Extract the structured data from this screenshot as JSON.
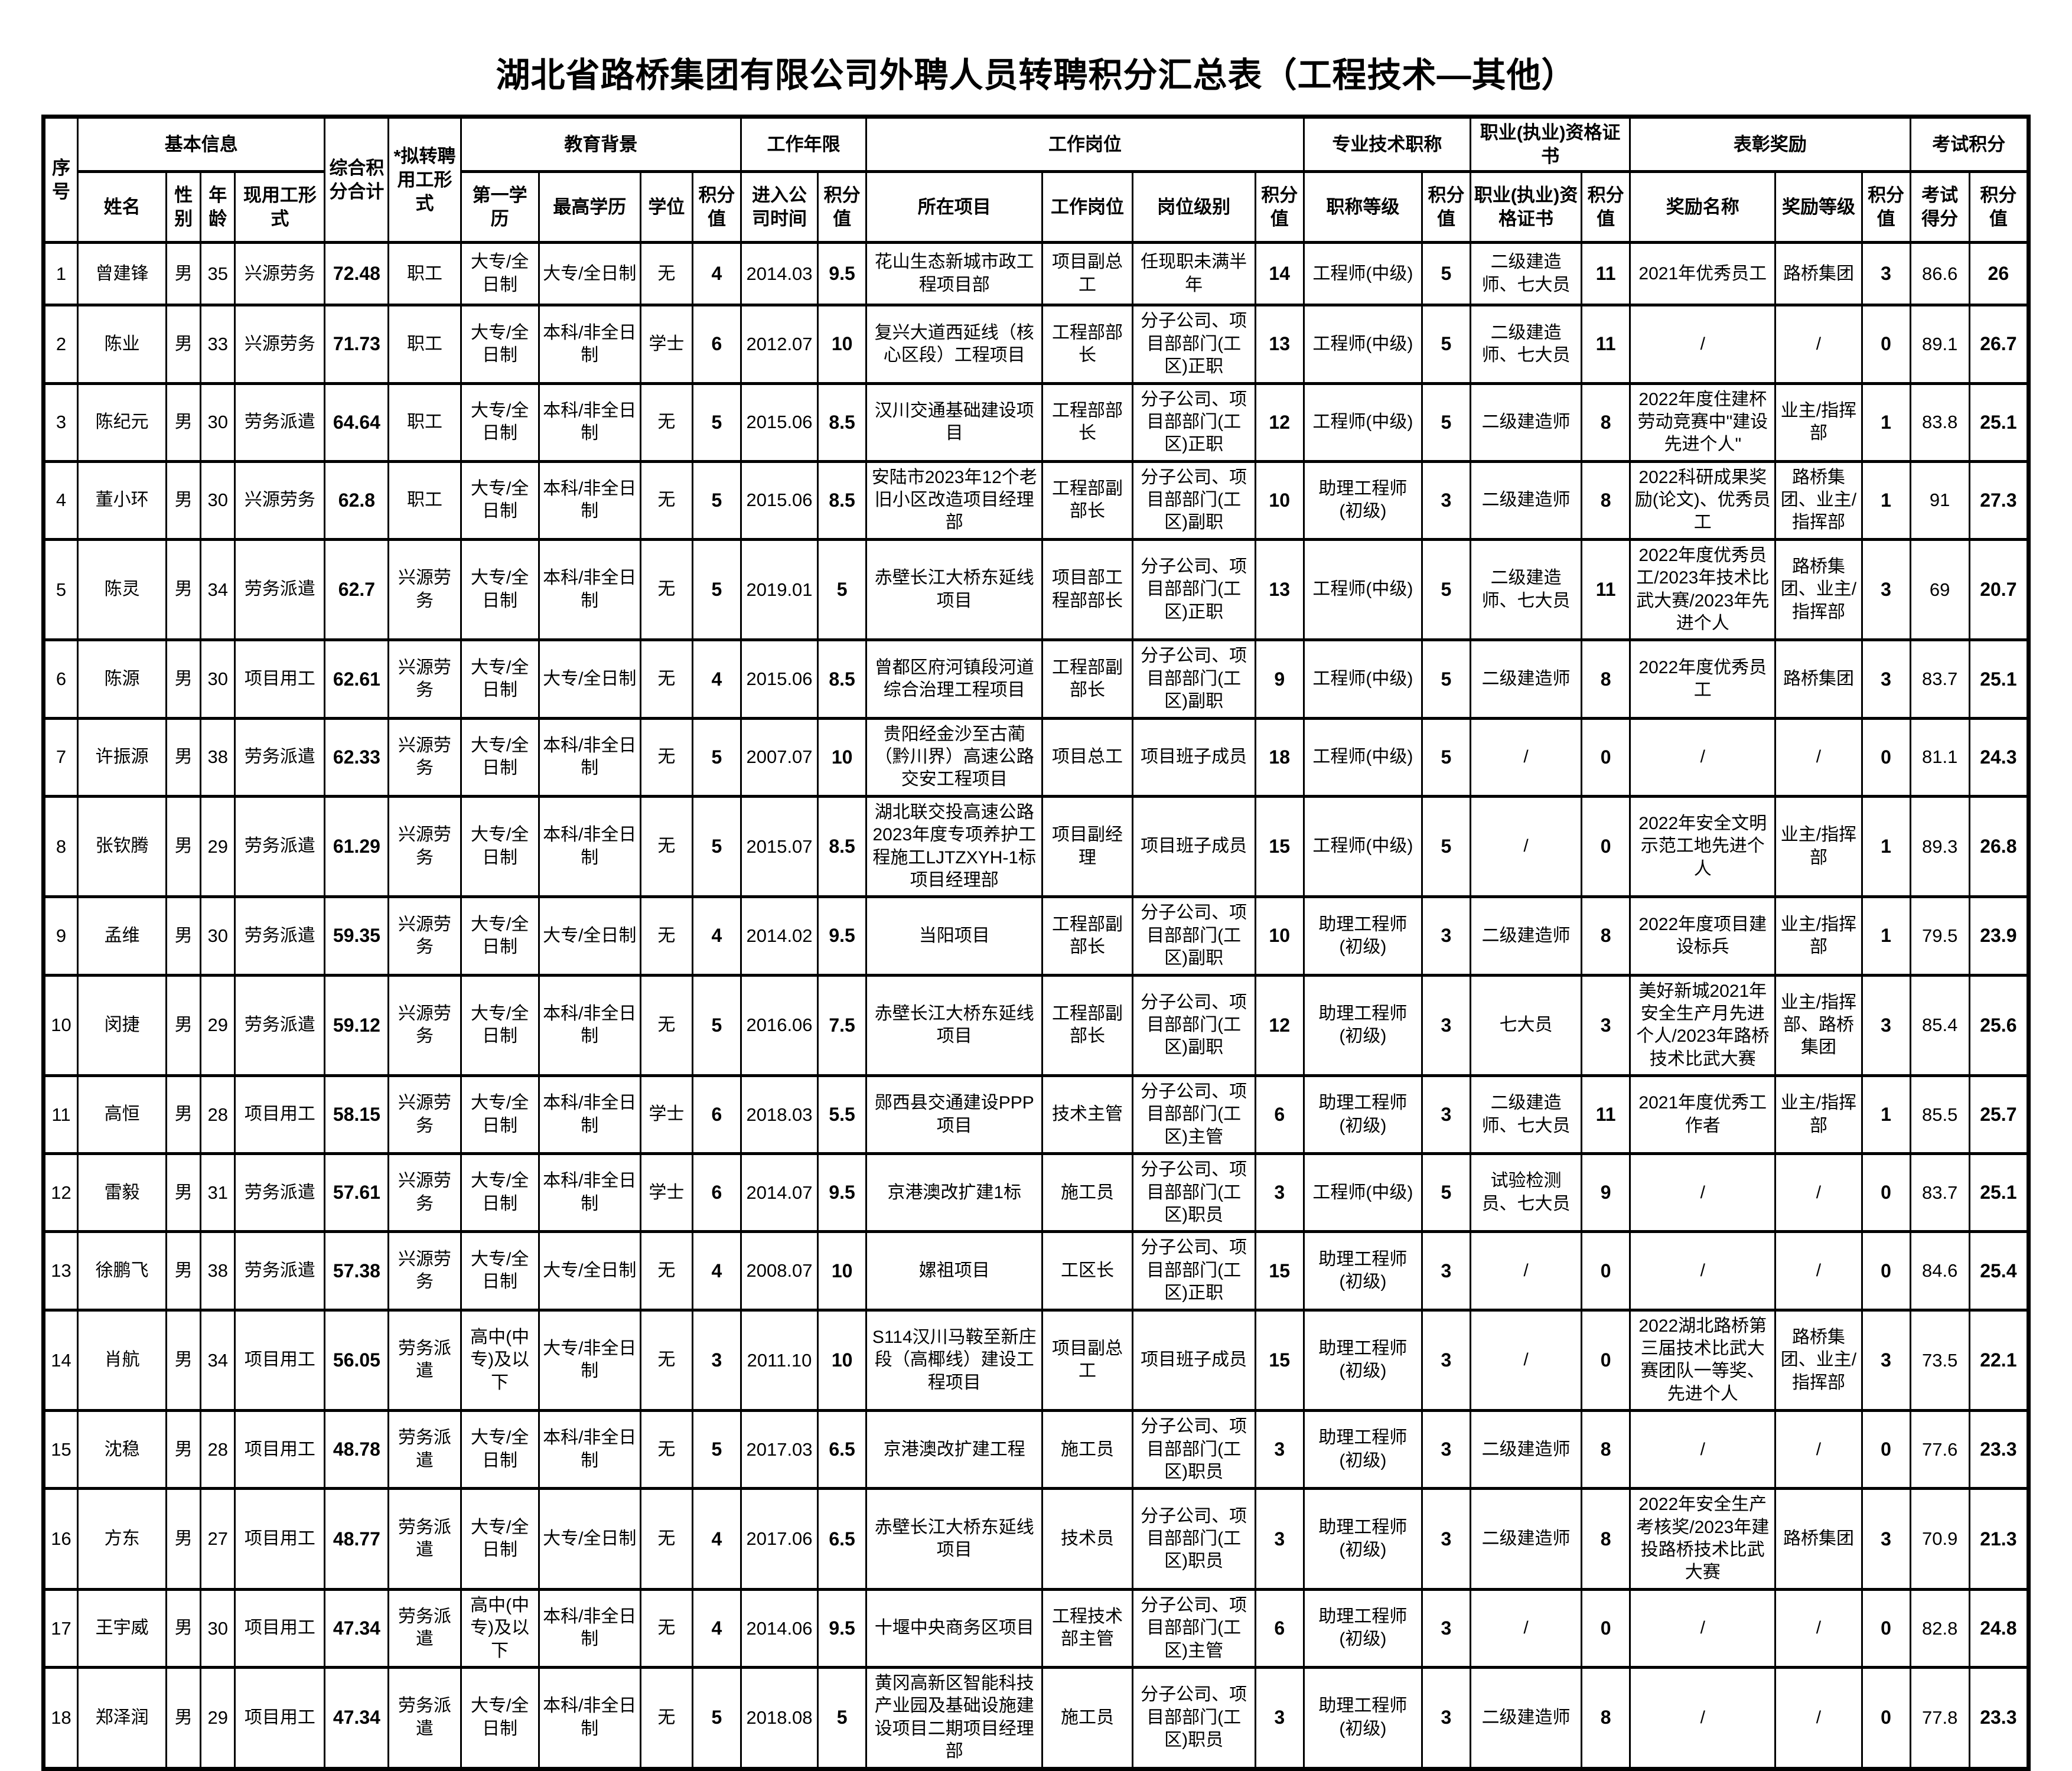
{
  "title": "湖北省路桥集团有限公司外聘人员转聘积分汇总表（工程技术—其他）",
  "table": {
    "header": {
      "row1": [
        {
          "label": "序号",
          "rowspan": 2
        },
        {
          "label": "基本信息",
          "colspan": 4
        },
        {
          "label": "综合积分合计",
          "rowspan": 2
        },
        {
          "label": "*拟转聘用工形式",
          "rowspan": 2
        },
        {
          "label": "教育背景",
          "colspan": 4
        },
        {
          "label": "工作年限",
          "colspan": 2
        },
        {
          "label": "工作岗位",
          "colspan": 4
        },
        {
          "label": "专业技术职称",
          "colspan": 2
        },
        {
          "label": "职业(执业)资格证书",
          "colspan": 2
        },
        {
          "label": "表彰奖励",
          "colspan": 3
        },
        {
          "label": "考试积分",
          "colspan": 2
        }
      ],
      "row2": [
        "姓名",
        "性别",
        "年龄",
        "现用工形式",
        "第一学历",
        "最高学历",
        "学位",
        "积分值",
        "进入公司时间",
        "积分值",
        "所在项目",
        "工作岗位",
        "岗位级别",
        "积分值",
        "职称等级",
        "积分值",
        "职业(执业)资格证书",
        "积分值",
        "奖励名称",
        "奖励等级",
        "积分值",
        "考试得分",
        "积分值"
      ]
    },
    "rows": [
      [
        "1",
        "曾建锋",
        "男",
        "35",
        "兴源劳务",
        "72.48",
        "职工",
        "大专/全日制",
        "大专/全日制",
        "无",
        "4",
        "2014.03",
        "9.5",
        "花山生态新城市政工程项目部",
        "项目副总工",
        "任现职未满半年",
        "14",
        "工程师(中级)",
        "5",
        "二级建造师、七大员",
        "11",
        "2021年优秀员工",
        "路桥集团",
        "3",
        "86.6",
        "26"
      ],
      [
        "2",
        "陈业",
        "男",
        "33",
        "兴源劳务",
        "71.73",
        "职工",
        "大专/全日制",
        "本科/非全日制",
        "学士",
        "6",
        "2012.07",
        "10",
        "复兴大道西延线（核心区段）工程项目",
        "工程部部长",
        "分子公司、项目部部门(工区)正职",
        "13",
        "工程师(中级)",
        "5",
        "二级建造师、七大员",
        "11",
        "/",
        "/",
        "0",
        "89.1",
        "26.7"
      ],
      [
        "3",
        "陈纪元",
        "男",
        "30",
        "劳务派遣",
        "64.64",
        "职工",
        "大专/全日制",
        "本科/非全日制",
        "无",
        "5",
        "2015.06",
        "8.5",
        "汉川交通基础建设项目",
        "工程部部长",
        "分子公司、项目部部门(工区)正职",
        "12",
        "工程师(中级)",
        "5",
        "二级建造师",
        "8",
        "2022年度住建杯劳动竞赛中\"建设先进个人\"",
        "业主/指挥部",
        "1",
        "83.8",
        "25.1"
      ],
      [
        "4",
        "董小环",
        "男",
        "30",
        "兴源劳务",
        "62.8",
        "职工",
        "大专/全日制",
        "本科/非全日制",
        "无",
        "5",
        "2015.06",
        "8.5",
        "安陆市2023年12个老旧小区改造项目经理部",
        "工程部副部长",
        "分子公司、项目部部门(工区)副职",
        "10",
        "助理工程师(初级)",
        "3",
        "二级建造师",
        "8",
        "2022科研成果奖励(论文)、优秀员工",
        "路桥集团、业主/指挥部",
        "1",
        "91",
        "27.3"
      ],
      [
        "5",
        "陈灵",
        "男",
        "34",
        "劳务派遣",
        "62.7",
        "兴源劳务",
        "大专/全日制",
        "本科/非全日制",
        "无",
        "5",
        "2019.01",
        "5",
        "赤壁长江大桥东延线项目",
        "项目部工程部部长",
        "分子公司、项目部部门(工区)正职",
        "13",
        "工程师(中级)",
        "5",
        "二级建造师、七大员",
        "11",
        "2022年度优秀员工/2023年技术比武大赛/2023年先进个人",
        "路桥集团、业主/指挥部",
        "3",
        "69",
        "20.7"
      ],
      [
        "6",
        "陈源",
        "男",
        "30",
        "项目用工",
        "62.61",
        "兴源劳务",
        "大专/全日制",
        "大专/全日制",
        "无",
        "4",
        "2015.06",
        "8.5",
        "曾都区府河镇段河道综合治理工程项目",
        "工程部副部长",
        "分子公司、项目部部门(工区)副职",
        "9",
        "工程师(中级)",
        "5",
        "二级建造师",
        "8",
        "2022年度优秀员工",
        "路桥集团",
        "3",
        "83.7",
        "25.1"
      ],
      [
        "7",
        "许振源",
        "男",
        "38",
        "劳务派遣",
        "62.33",
        "兴源劳务",
        "大专/全日制",
        "本科/非全日制",
        "无",
        "5",
        "2007.07",
        "10",
        "贵阳经金沙至古蔺（黔川界）高速公路交安工程项目",
        "项目总工",
        "项目班子成员",
        "18",
        "工程师(中级)",
        "5",
        "/",
        "0",
        "/",
        "/",
        "0",
        "81.1",
        "24.3"
      ],
      [
        "8",
        "张钦腾",
        "男",
        "29",
        "劳务派遣",
        "61.29",
        "兴源劳务",
        "大专/全日制",
        "本科/非全日制",
        "无",
        "5",
        "2015.07",
        "8.5",
        "湖北联交投高速公路2023年度专项养护工程施工LJTZXYH-1标项目经理部",
        "项目副经理",
        "项目班子成员",
        "15",
        "工程师(中级)",
        "5",
        "/",
        "0",
        "2022年安全文明示范工地先进个人",
        "业主/指挥部",
        "1",
        "89.3",
        "26.8"
      ],
      [
        "9",
        "孟维",
        "男",
        "30",
        "劳务派遣",
        "59.35",
        "兴源劳务",
        "大专/全日制",
        "大专/全日制",
        "无",
        "4",
        "2014.02",
        "9.5",
        "当阳项目",
        "工程部副部长",
        "分子公司、项目部部门(工区)副职",
        "10",
        "助理工程师(初级)",
        "3",
        "二级建造师",
        "8",
        "2022年度项目建设标兵",
        "业主/指挥部",
        "1",
        "79.5",
        "23.9"
      ],
      [
        "10",
        "闵捷",
        "男",
        "29",
        "劳务派遣",
        "59.12",
        "兴源劳务",
        "大专/全日制",
        "本科/非全日制",
        "无",
        "5",
        "2016.06",
        "7.5",
        "赤壁长江大桥东延线项目",
        "工程部副部长",
        "分子公司、项目部部门(工区)副职",
        "12",
        "助理工程师(初级)",
        "3",
        "七大员",
        "3",
        "美好新城2021年安全生产月先进个人/2023年路桥技术比武大赛",
        "业主/指挥部、路桥集团",
        "3",
        "85.4",
        "25.6"
      ],
      [
        "11",
        "高恒",
        "男",
        "28",
        "项目用工",
        "58.15",
        "兴源劳务",
        "大专/全日制",
        "本科/非全日制",
        "学士",
        "6",
        "2018.03",
        "5.5",
        "郧西县交通建设PPP项目",
        "技术主管",
        "分子公司、项目部部门(工区)主管",
        "6",
        "助理工程师(初级)",
        "3",
        "二级建造师、七大员",
        "11",
        "2021年度优秀工作者",
        "业主/指挥部",
        "1",
        "85.5",
        "25.7"
      ],
      [
        "12",
        "雷毅",
        "男",
        "31",
        "劳务派遣",
        "57.61",
        "兴源劳务",
        "大专/全日制",
        "本科/非全日制",
        "学士",
        "6",
        "2014.07",
        "9.5",
        "京港澳改扩建1标",
        "施工员",
        "分子公司、项目部部门(工区)职员",
        "3",
        "工程师(中级)",
        "5",
        "试验检测员、七大员",
        "9",
        "/",
        "/",
        "0",
        "83.7",
        "25.1"
      ],
      [
        "13",
        "徐鹏飞",
        "男",
        "38",
        "劳务派遣",
        "57.38",
        "兴源劳务",
        "大专/全日制",
        "大专/全日制",
        "无",
        "4",
        "2008.07",
        "10",
        "嫘祖项目",
        "工区长",
        "分子公司、项目部部门(工区)正职",
        "15",
        "助理工程师(初级)",
        "3",
        "/",
        "0",
        "/",
        "/",
        "0",
        "84.6",
        "25.4"
      ],
      [
        "14",
        "肖航",
        "男",
        "34",
        "项目用工",
        "56.05",
        "劳务派遣",
        "高中(中专)及以下",
        "大专/非全日制",
        "无",
        "3",
        "2011.10",
        "10",
        "S114汉川马鞍至新庄段（高椰线）建设工程项目",
        "项目副总工",
        "项目班子成员",
        "15",
        "助理工程师(初级)",
        "3",
        "/",
        "0",
        "2022湖北路桥第三届技术比武大赛团队一等奖、先进个人",
        "路桥集团、业主/指挥部",
        "3",
        "73.5",
        "22.1"
      ],
      [
        "15",
        "沈稳",
        "男",
        "28",
        "项目用工",
        "48.78",
        "劳务派遣",
        "大专/全日制",
        "本科/非全日制",
        "无",
        "5",
        "2017.03",
        "6.5",
        "京港澳改扩建工程",
        "施工员",
        "分子公司、项目部部门(工区)职员",
        "3",
        "助理工程师(初级)",
        "3",
        "二级建造师",
        "8",
        "/",
        "/",
        "0",
        "77.6",
        "23.3"
      ],
      [
        "16",
        "方东",
        "男",
        "27",
        "项目用工",
        "48.77",
        "劳务派遣",
        "大专/全日制",
        "大专/全日制",
        "无",
        "4",
        "2017.06",
        "6.5",
        "赤壁长江大桥东延线项目",
        "技术员",
        "分子公司、项目部部门(工区)职员",
        "3",
        "助理工程师(初级)",
        "3",
        "二级建造师",
        "8",
        "2022年安全生产考核奖/2023年建投路桥技术比武大赛",
        "路桥集团",
        "3",
        "70.9",
        "21.3"
      ],
      [
        "17",
        "王宇威",
        "男",
        "30",
        "项目用工",
        "47.34",
        "劳务派遣",
        "高中(中专)及以下",
        "本科/非全日制",
        "无",
        "4",
        "2014.06",
        "9.5",
        "十堰中央商务区项目",
        "工程技术部主管",
        "分子公司、项目部部门(工区)主管",
        "6",
        "助理工程师(初级)",
        "3",
        "/",
        "0",
        "/",
        "/",
        "0",
        "82.8",
        "24.8"
      ],
      [
        "18",
        "郑泽润",
        "男",
        "29",
        "项目用工",
        "47.34",
        "劳务派遣",
        "大专/全日制",
        "本科/非全日制",
        "无",
        "5",
        "2018.08",
        "5",
        "黄冈高新区智能科技产业园及基础设施建设项目二期项目经理部",
        "施工员",
        "分子公司、项目部部门(工区)职员",
        "3",
        "助理工程师(初级)",
        "3",
        "二级建造师",
        "8",
        "/",
        "/",
        "0",
        "77.8",
        "23.3"
      ]
    ]
  }
}
